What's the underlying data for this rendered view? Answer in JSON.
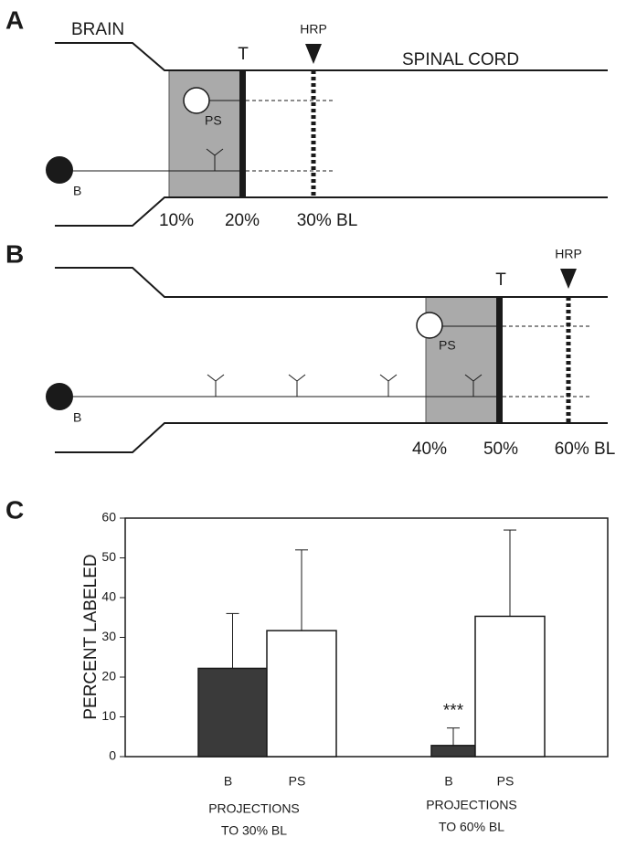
{
  "diagrams": [
    {
      "label": "A",
      "brain": "BRAIN",
      "spinal_cord": "SPINAL CORD",
      "t": "T",
      "hrp": "HRP",
      "ps": "PS",
      "b": "B",
      "positions": [
        "10%",
        "20%",
        "30% BL"
      ]
    },
    {
      "label": "B",
      "t": "T",
      "hrp": "HRP",
      "ps": "PS",
      "b": "B",
      "positions": [
        "40%",
        "50%",
        "60% BL"
      ]
    }
  ],
  "chart_data": {
    "type": "bar",
    "panel_label": "C",
    "ylabel": "PERCENT LABELED",
    "categories": [
      "B",
      "PS",
      "B",
      "PS"
    ],
    "values": [
      22.2,
      31.7,
      2.8,
      35.3
    ],
    "errors": [
      13.8,
      20.3,
      4.4,
      21.7
    ],
    "colors": [
      "#3a3a3a",
      "#ffffff",
      "#3a3a3a",
      "#ffffff"
    ],
    "groups": [
      [
        "PROJECTIONS",
        "TO 30% BL"
      ],
      [
        "PROJECTIONS",
        "TO 60% BL"
      ]
    ],
    "annotations": [
      {
        "index": 2,
        "text": "***"
      }
    ],
    "ylim": [
      0,
      60
    ],
    "yticks": [
      0,
      10,
      20,
      30,
      40,
      50,
      60
    ]
  }
}
